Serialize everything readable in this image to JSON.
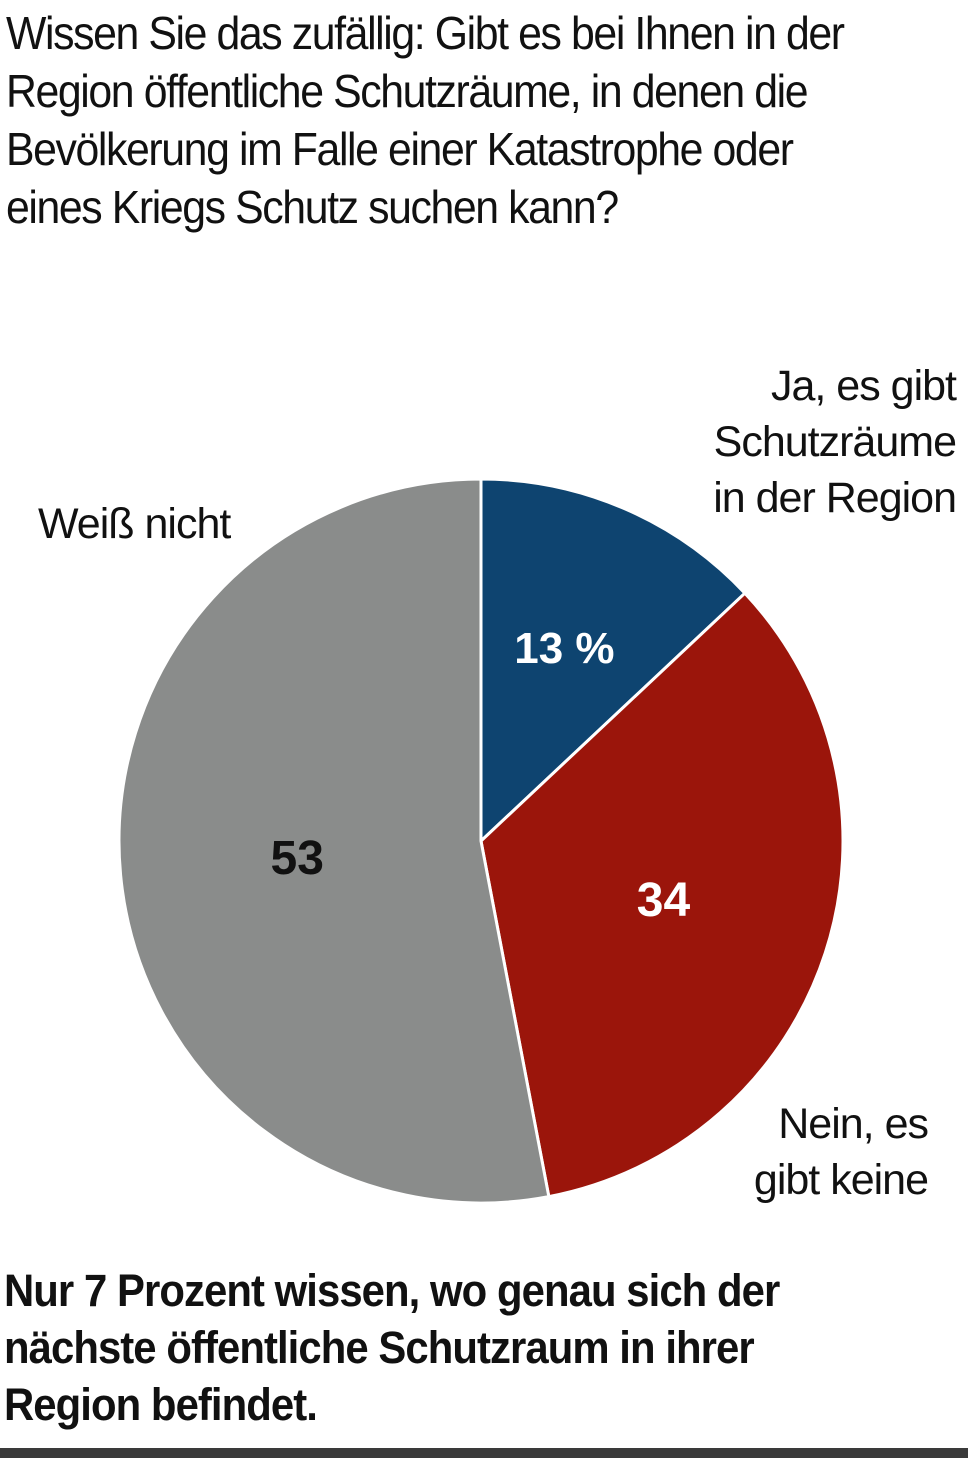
{
  "question": "Wissen Sie das zufällig: Gibt es bei Ihnen in der\nRegion öffentliche Schutzräume, in denen die\nBevölkerung im Falle einer Katastrophe oder\neines Kriegs Schutz suchen kann?",
  "chart_data": {
    "type": "pie",
    "unit": "%",
    "slices": [
      {
        "label": "Ja, es gibt\nSchutzräume\nin der Region",
        "value": 13,
        "value_label": "13 %",
        "color": "#0e4470",
        "value_color": "#ffffff"
      },
      {
        "label": "Nein, es\ngibt keine",
        "value": 34,
        "value_label": "34",
        "color": "#9b150b",
        "value_color": "#ffffff"
      },
      {
        "label": "Weiß nicht",
        "value": 53,
        "value_label": "53",
        "color": "#8a8c8b",
        "value_color": "#111111"
      }
    ]
  },
  "conclusion": "Nur 7 Prozent wissen, wo genau sich der\nnächste öffentliche Schutzraum in ihrer\nRegion befindet."
}
